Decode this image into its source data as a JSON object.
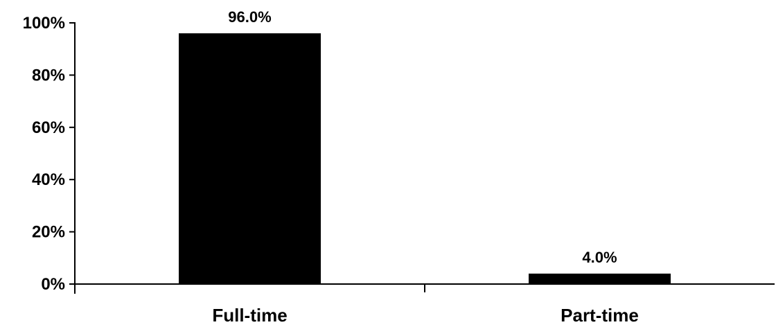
{
  "chart_data": {
    "type": "bar",
    "categories": [
      "Full-time",
      "Part-time"
    ],
    "values": [
      96.0,
      4.0
    ],
    "data_labels": [
      "96.0%",
      "4.0%"
    ],
    "title": "",
    "xlabel": "",
    "ylabel": "",
    "ylim": [
      0,
      100
    ],
    "yticks": [
      0,
      20,
      40,
      60,
      80,
      100
    ],
    "ytick_labels": [
      "0%",
      "20%",
      "40%",
      "60%",
      "80%",
      "100%"
    ],
    "grid": false,
    "legend": "none",
    "bar_color": "#000000"
  }
}
